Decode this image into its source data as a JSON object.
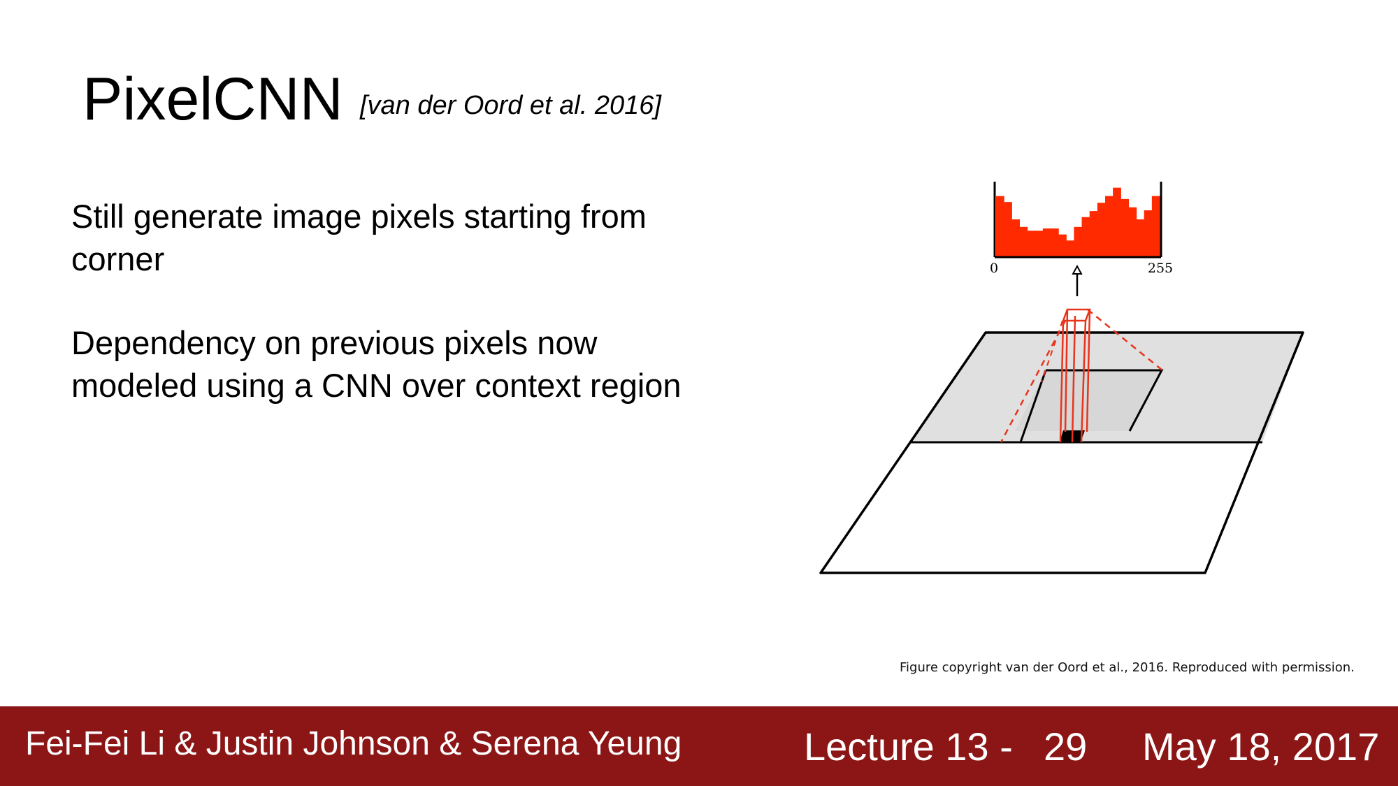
{
  "slide": {
    "title": "PixelCNN",
    "citation": "[van der Oord et al. 2016]",
    "bullets": [
      {
        "lines": [
          "Still generate image pixels starting from",
          "corner"
        ]
      },
      {
        "lines": [
          "Dependency on previous pixels now",
          "modeled using a CNN over context region"
        ]
      }
    ],
    "figure": {
      "histogram_axis_min_label": "0",
      "histogram_axis_max_label": "255",
      "histogram_bar_levels": [
        0.81,
        0.73,
        0.5,
        0.4,
        0.35,
        0.35,
        0.38,
        0.38,
        0.3,
        0.22,
        0.4,
        0.53,
        0.61,
        0.72,
        0.81,
        0.92,
        0.77,
        0.66,
        0.5,
        0.62,
        0.81
      ],
      "histogram_color": "#ff2a00",
      "context_region_color": "#e0e0e0",
      "receptive_field_color": "#e8341c"
    },
    "credit": "Figure copyright van der Oord et al., 2016. Reproduced with permission."
  },
  "footer": {
    "authors": "Fei-Fei Li & Justin Johnson & Serena Yeung",
    "lecture": "Lecture 13 -",
    "page": "29",
    "date": "May 18, 2017",
    "background_color": "#8c1515"
  }
}
